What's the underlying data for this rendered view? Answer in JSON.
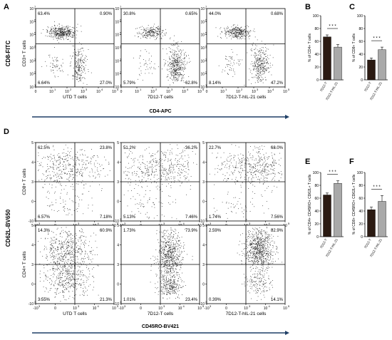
{
  "panel_letters": [
    "A",
    "B",
    "C",
    "D",
    "E",
    "F"
  ],
  "panel_a": {
    "y_axis": "CD8-FITC",
    "x_axis": "CD4-APC",
    "row_label": "CD3+ T cells",
    "plots": [
      {
        "title": "UTD T cells",
        "q": [
          "63.4%",
          "0.90%",
          "6.64%",
          "27.0%"
        ]
      },
      {
        "title": "7D12-T cells",
        "q": [
          "30.8%",
          "0.65%",
          "5.79%",
          "62.8%"
        ]
      },
      {
        "title": "7D12-T-hIL-21  cells",
        "q": [
          "44.0%",
          "0.68%",
          "8.14%",
          "47.2%"
        ]
      }
    ],
    "ticks_x": [
      "0",
      "10",
      "10",
      "10",
      "10",
      "10"
    ],
    "ticks_y": [
      "10",
      "10",
      "10",
      "10",
      "10",
      "10",
      "10"
    ]
  },
  "panel_d": {
    "y_axis": "CD62L-BV650",
    "x_axis": "CD45RO-BV421",
    "rows": [
      {
        "label": "CD8+ T cells",
        "plots": [
          {
            "title": "UTD T cells",
            "q": [
              "62.5%",
              "23.8%",
              "6.57%",
              "7.18%"
            ]
          },
          {
            "title": "7D12-T cells",
            "q": [
              "51.2%",
              "36.2%",
              "5.13%",
              "7.46%"
            ]
          },
          {
            "title": "7D12-T-hIL-21  cells",
            "q": [
              "22.7%",
              "68.0%",
              "1.74%",
              "7.56%"
            ]
          }
        ]
      },
      {
        "label": "CD4+ T cells",
        "plots": [
          {
            "title": "UTD T cells",
            "q": [
              "14.3%",
              "60.9%",
              "3.55%",
              "21.3%"
            ]
          },
          {
            "title": "7D12-T cells",
            "q": [
              "1.73%",
              "73.9%",
              "1.01%",
              "23.4%"
            ]
          },
          {
            "title": "7D12-T-hIL-21  cells",
            "q": [
              "2.59%",
              "82.9%",
              "0.39%",
              "14.1%"
            ]
          }
        ]
      }
    ],
    "ticks_x": [
      "-10",
      "0",
      "10",
      "10",
      "10"
    ],
    "ticks_y": [
      "-10",
      "0",
      "3",
      "4",
      "5"
    ]
  },
  "colors": {
    "dark_bar": "#2b1a12",
    "light_bar": "#a9a9a9",
    "arrow": "#1f3f66"
  },
  "chart_data": [
    {
      "type": "bar",
      "panel": "B",
      "categories": [
        "7D12-T",
        "7D12-T-hIL-21"
      ],
      "values": [
        67,
        51
      ],
      "errors": [
        3,
        4
      ],
      "ylabel": "% of CD4+ T cells",
      "ylim": [
        0,
        100
      ],
      "yticks": [
        0,
        20,
        40,
        60,
        80,
        100
      ],
      "significance": "* * *"
    },
    {
      "type": "bar",
      "panel": "C",
      "categories": [
        "7D12-T",
        "7D12-T-hIL-21"
      ],
      "values": [
        31,
        47
      ],
      "errors": [
        3,
        4
      ],
      "ylabel": "% of CD8+ T cells",
      "ylim": [
        0,
        100
      ],
      "yticks": [
        0,
        20,
        40,
        60,
        80,
        100
      ],
      "significance": "* * *"
    },
    {
      "type": "bar",
      "panel": "E",
      "categories": [
        "7D12-T",
        "7D12-T-hIL-21"
      ],
      "values": [
        65,
        83
      ],
      "errors": [
        3,
        4
      ],
      "ylabel": "% of CD4+ CD45RO+ CD62L+ T cells",
      "ylim": [
        0,
        100
      ],
      "yticks": [
        0,
        20,
        40,
        60,
        80,
        100
      ],
      "significance": "* * *"
    },
    {
      "type": "bar",
      "panel": "F",
      "categories": [
        "7D12-T",
        "7D12-T-hIL-21"
      ],
      "values": [
        42,
        55
      ],
      "errors": [
        4,
        9
      ],
      "ylabel": "% of CD8+ CD45RO+ CD62L+ T cells",
      "ylim": [
        0,
        100
      ],
      "yticks": [
        0,
        20,
        40,
        60,
        80,
        100
      ],
      "significance": "* * *"
    }
  ]
}
